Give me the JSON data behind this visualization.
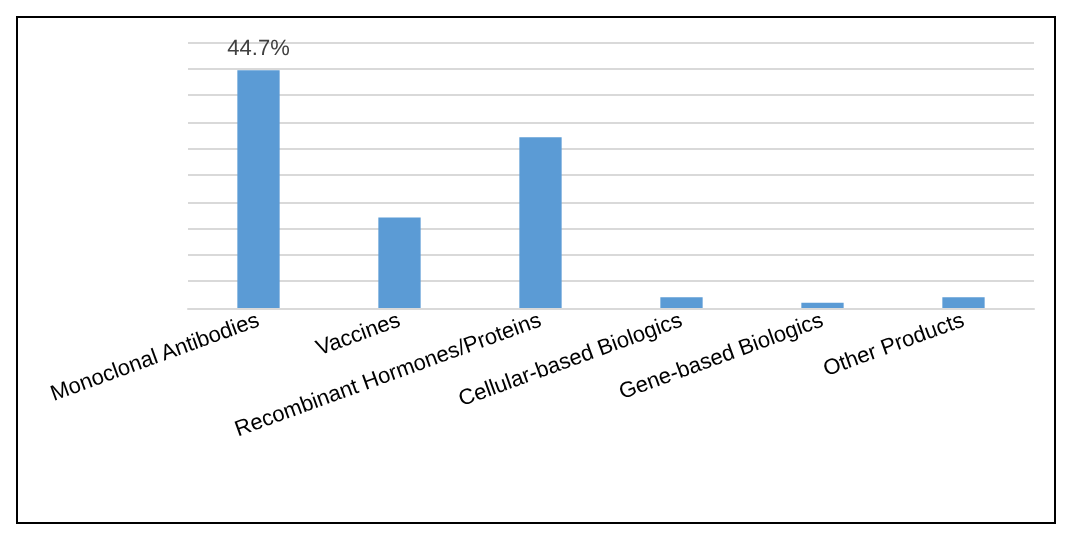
{
  "chart_data": {
    "type": "bar",
    "categories": [
      "Monoclonal Antibodies",
      "Vaccines",
      "Recombinant Hormones/Proteins",
      "Cellular-based Biologics",
      "Gene-based Biologics",
      "Other Products"
    ],
    "values": [
      44.7,
      17.0,
      32.1,
      2.0,
      1.0,
      2.0
    ],
    "value_labels": [
      "44.7%",
      null,
      null,
      null,
      null,
      null
    ],
    "ylim": [
      0,
      50
    ],
    "yticks": [
      {
        "value": 0,
        "label": null
      },
      {
        "value": 5,
        "label": null
      },
      {
        "value": 10,
        "label": null
      },
      {
        "value": 15,
        "label": null
      },
      {
        "value": 20,
        "label": null
      },
      {
        "value": 25,
        "label": null
      },
      {
        "value": 30,
        "label": null
      },
      {
        "value": 35,
        "label": null
      },
      {
        "value": 40,
        "label": null
      },
      {
        "value": 45,
        "label": null
      },
      {
        "value": 50,
        "label": null
      }
    ],
    "color": "#5b9bd5",
    "grid": "y"
  }
}
